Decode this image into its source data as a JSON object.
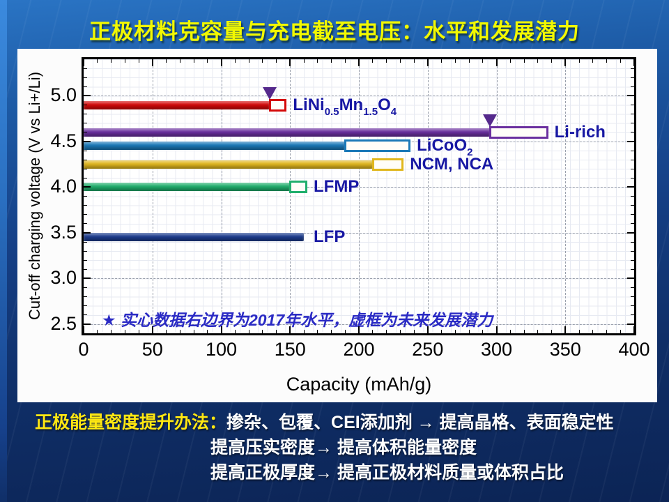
{
  "slide": {
    "title": "正极材料克容量与充电截至电压：水平和发展潜力",
    "footer": {
      "prefix": "正极能量密度提升办法：",
      "lines": [
        "掺杂、包覆、CEI添加剂 → 提高晶格、表面稳定性",
        "提高压实密度→ 提高体积能量密度",
        "提高正极厚度→ 提高正极材料质量或体积占比"
      ]
    }
  },
  "chart_data": {
    "type": "bar",
    "orientation": "horizontal",
    "title": "",
    "xlabel": "Capacity (mAh/g)",
    "ylabel": "Cut-off charging voltage (V vs Li+/Li)",
    "xlim": [
      0,
      400
    ],
    "ylim": [
      2.4,
      5.4
    ],
    "x_ticks": [
      0,
      50,
      100,
      150,
      200,
      250,
      300,
      350,
      400
    ],
    "y_ticks": [
      2.5,
      3.0,
      3.5,
      4.0,
      4.5,
      5.0
    ],
    "x_minor_step": 10,
    "y_minor_step": 0.1,
    "grid": "fine minor grid plus dashed gridlines at major ticks, full box frame with inward ticks",
    "legend_position": "none",
    "annotation": "★ 实心数据右边界为2017年水平，虚框为未来发展潜力",
    "marker_color": "#55298c",
    "label_color": "#1717a3",
    "series": [
      {
        "id": "lnmo",
        "name": "LiNi0.5Mn1.5O4",
        "label_parts": [
          [
            "t",
            "LiNi"
          ],
          [
            "s",
            "0.5"
          ],
          [
            "t",
            "Mn"
          ],
          [
            "s",
            "1.5"
          ],
          [
            "t",
            "O"
          ],
          [
            "s",
            "4"
          ]
        ],
        "voltage": 4.9,
        "capacity_2017": 135,
        "capacity_potential": 145,
        "color": "#d40909",
        "marker_2017": true
      },
      {
        "id": "lirich",
        "name": "Li-rich",
        "label_parts": [
          [
            "t",
            "Li-rich"
          ]
        ],
        "voltage": 4.6,
        "capacity_2017": 295,
        "capacity_potential": 335,
        "color": "#6a2f9f",
        "marker_2017": true
      },
      {
        "id": "lco",
        "name": "LiCoO2",
        "label_parts": [
          [
            "t",
            "LiCoO"
          ],
          [
            "s",
            "2"
          ]
        ],
        "voltage": 4.45,
        "capacity_2017": 190,
        "capacity_potential": 235,
        "color": "#1b79b8",
        "marker_2017": false
      },
      {
        "id": "ncm",
        "name": "NCM, NCA",
        "label_parts": [
          [
            "t",
            "NCM, NCA"
          ]
        ],
        "voltage": 4.25,
        "capacity_2017": 210,
        "capacity_potential": 230,
        "color": "#e0b71e",
        "marker_2017": false
      },
      {
        "id": "lfmp",
        "name": "LFMP",
        "label_parts": [
          [
            "t",
            "LFMP"
          ]
        ],
        "voltage": 4.0,
        "capacity_2017": 150,
        "capacity_potential": 160,
        "color": "#21af6d",
        "marker_2017": false
      },
      {
        "id": "lfp",
        "name": "LFP",
        "label_parts": [
          [
            "t",
            "LFP"
          ]
        ],
        "voltage": 3.45,
        "capacity_2017": 160,
        "capacity_potential": null,
        "color": "#1c3c8e",
        "marker_2017": false
      }
    ]
  }
}
